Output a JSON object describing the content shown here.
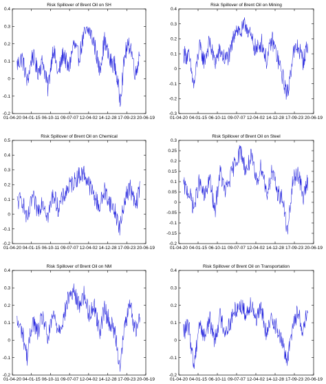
{
  "chart_data": [
    {
      "type": "line",
      "title": "Risk Spillover of Brent Oil on SH",
      "xlabel": "",
      "ylabel": "",
      "x_ticks": [
        "01-04-20",
        "04-01-15",
        "06-10-11",
        "09-07-07",
        "12-04-02",
        "14-12-28",
        "17-09-23",
        "20-06-19"
      ],
      "ylim": [
        -0.2,
        0.4
      ],
      "y_ticks": [
        -0.2,
        -0.1,
        0,
        0.1,
        0.2,
        0.3,
        0.4
      ],
      "grid": false,
      "color": "#2222dd",
      "x": [
        0,
        0.04,
        0.08,
        0.12,
        0.16,
        0.2,
        0.24,
        0.28,
        0.32,
        0.36,
        0.4,
        0.44,
        0.48,
        0.52,
        0.56,
        0.6,
        0.64,
        0.68,
        0.72,
        0.76,
        0.8,
        0.84,
        0.88,
        0.92,
        0.96,
        1.0
      ],
      "values": [
        0.08,
        0.12,
        -0.02,
        0.14,
        0.04,
        0.1,
        -0.06,
        0.18,
        0.02,
        0.15,
        0.05,
        0.2,
        0.12,
        0.25,
        0.28,
        0.2,
        0.05,
        0.22,
        0.1,
        0.08,
        -0.12,
        0.15,
        0.2,
        0.02,
        0.18,
        0.06
      ]
    },
    {
      "type": "line",
      "title": "Risk Spillover of Brent Oil on Mining",
      "xlabel": "",
      "ylabel": "",
      "x_ticks": [
        "01-04-20",
        "04-01-15",
        "06-10-11",
        "09-07-07",
        "12-04-02",
        "14-12-28",
        "17-09-23",
        "20-06-19"
      ],
      "ylim": [
        -0.3,
        0.4
      ],
      "y_ticks": [
        -0.3,
        -0.2,
        -0.1,
        0,
        0.1,
        0.2,
        0.3,
        0.4
      ],
      "grid": false,
      "color": "#2222dd",
      "x": [
        0,
        0.04,
        0.08,
        0.12,
        0.16,
        0.2,
        0.24,
        0.28,
        0.32,
        0.36,
        0.4,
        0.44,
        0.48,
        0.52,
        0.56,
        0.6,
        0.64,
        0.68,
        0.72,
        0.76,
        0.8,
        0.84,
        0.88,
        0.92,
        0.96,
        1.0
      ],
      "values": [
        0.1,
        0.08,
        -0.12,
        0.15,
        0.05,
        0.18,
        0.04,
        0.12,
        0.06,
        0.1,
        0.28,
        0.24,
        0.3,
        0.2,
        0.12,
        0.18,
        0.05,
        0.2,
        0.08,
        -0.05,
        -0.18,
        0.1,
        0.15,
        0.05,
        0.18,
        0.1
      ]
    },
    {
      "type": "line",
      "title": "Risk Spillover of Brent Oil on Chemical",
      "xlabel": "",
      "ylabel": "",
      "x_ticks": [
        "01-04-20",
        "04-01-15",
        "06-10-11",
        "09-07-07",
        "12-04-02",
        "14-12-28",
        "17-09-23",
        "20-06-19"
      ],
      "ylim": [
        -0.2,
        0.5
      ],
      "y_ticks": [
        -0.2,
        -0.1,
        0,
        0.1,
        0.2,
        0.3,
        0.4,
        0.5
      ],
      "grid": false,
      "color": "#2222dd",
      "x": [
        0,
        0.04,
        0.08,
        0.12,
        0.16,
        0.2,
        0.24,
        0.28,
        0.32,
        0.36,
        0.4,
        0.44,
        0.48,
        0.52,
        0.56,
        0.6,
        0.64,
        0.68,
        0.72,
        0.76,
        0.8,
        0.84,
        0.88,
        0.92,
        0.96,
        1.0
      ],
      "values": [
        0.08,
        0.1,
        -0.05,
        0.12,
        0.02,
        0.1,
        -0.02,
        0.14,
        0.04,
        0.12,
        0.18,
        0.22,
        0.26,
        0.28,
        0.2,
        0.12,
        0.05,
        0.16,
        0.08,
        0.02,
        -0.1,
        0.12,
        0.18,
        0.05,
        0.2,
        0.08
      ]
    },
    {
      "type": "line",
      "title": "Risk Spillover of Brent Oil on Steel",
      "xlabel": "",
      "ylabel": "",
      "x_ticks": [
        "01-04-20",
        "04-01-15",
        "06-10-11",
        "09-07-07",
        "12-04-02",
        "14-12-28",
        "17-09-23",
        "20-06-19"
      ],
      "ylim": [
        -0.2,
        0.3
      ],
      "y_ticks": [
        -0.2,
        -0.15,
        -0.1,
        -0.05,
        0,
        0.05,
        0.1,
        0.15,
        0.2,
        0.25,
        0.3
      ],
      "grid": false,
      "color": "#2222dd",
      "x": [
        0,
        0.04,
        0.08,
        0.12,
        0.16,
        0.2,
        0.24,
        0.28,
        0.32,
        0.36,
        0.4,
        0.44,
        0.48,
        0.52,
        0.56,
        0.6,
        0.64,
        0.68,
        0.72,
        0.76,
        0.8,
        0.84,
        0.88,
        0.92,
        0.96,
        1.0
      ],
      "values": [
        0.08,
        0.05,
        -0.03,
        0.1,
        0.02,
        0.12,
        -0.05,
        0.15,
        0.05,
        0.12,
        0.2,
        0.25,
        0.15,
        0.22,
        0.1,
        0.18,
        0.04,
        0.15,
        0.05,
        0.02,
        -0.15,
        0.1,
        0.15,
        0.02,
        0.12,
        0.06
      ]
    },
    {
      "type": "line",
      "title": "Risk Spillover of Brent Oil on NM",
      "xlabel": "",
      "ylabel": "",
      "x_ticks": [
        "01-04-20",
        "04-01-15",
        "06-10-11",
        "09-07-07",
        "12-04-02",
        "14-12-28",
        "17-09-23",
        "20-06-19"
      ],
      "ylim": [
        -0.2,
        0.4
      ],
      "y_ticks": [
        -0.2,
        -0.1,
        0,
        0.1,
        0.2,
        0.3,
        0.4
      ],
      "grid": false,
      "color": "#2222dd",
      "x": [
        0,
        0.04,
        0.08,
        0.12,
        0.16,
        0.2,
        0.24,
        0.28,
        0.32,
        0.36,
        0.4,
        0.44,
        0.48,
        0.52,
        0.56,
        0.6,
        0.64,
        0.68,
        0.72,
        0.76,
        0.8,
        0.84,
        0.88,
        0.92,
        0.96,
        1.0
      ],
      "values": [
        0.1,
        0.05,
        -0.1,
        0.12,
        0.04,
        0.14,
        0.0,
        0.15,
        0.06,
        0.12,
        0.25,
        0.28,
        0.2,
        0.26,
        0.15,
        0.2,
        0.05,
        0.18,
        0.1,
        0.05,
        -0.15,
        0.1,
        0.2,
        0.05,
        0.15,
        0.08
      ]
    },
    {
      "type": "line",
      "title": "Risk Spillover of Brent Oil on Transportation",
      "xlabel": "",
      "ylabel": "",
      "x_ticks": [
        "01-04-20",
        "04-01-15",
        "06-10-11",
        "09-07-07",
        "12-04-02",
        "14-12-28",
        "17-09-23",
        "20-06-19"
      ],
      "ylim": [
        -0.2,
        0.4
      ],
      "y_ticks": [
        -0.2,
        -0.1,
        0,
        0.1,
        0.2,
        0.3,
        0.4
      ],
      "grid": false,
      "color": "#2222dd",
      "x": [
        0,
        0.04,
        0.08,
        0.12,
        0.16,
        0.2,
        0.24,
        0.28,
        0.32,
        0.36,
        0.4,
        0.44,
        0.48,
        0.52,
        0.56,
        0.6,
        0.64,
        0.68,
        0.72,
        0.76,
        0.8,
        0.84,
        0.88,
        0.92,
        0.96,
        1.0
      ],
      "values": [
        0.05,
        0.08,
        -0.15,
        0.1,
        0.02,
        0.12,
        0.0,
        0.14,
        0.05,
        0.1,
        0.18,
        0.2,
        0.15,
        0.22,
        0.12,
        0.18,
        0.02,
        0.14,
        0.06,
        -0.02,
        -0.12,
        0.1,
        0.16,
        0.05,
        0.2,
        0.08
      ]
    }
  ]
}
